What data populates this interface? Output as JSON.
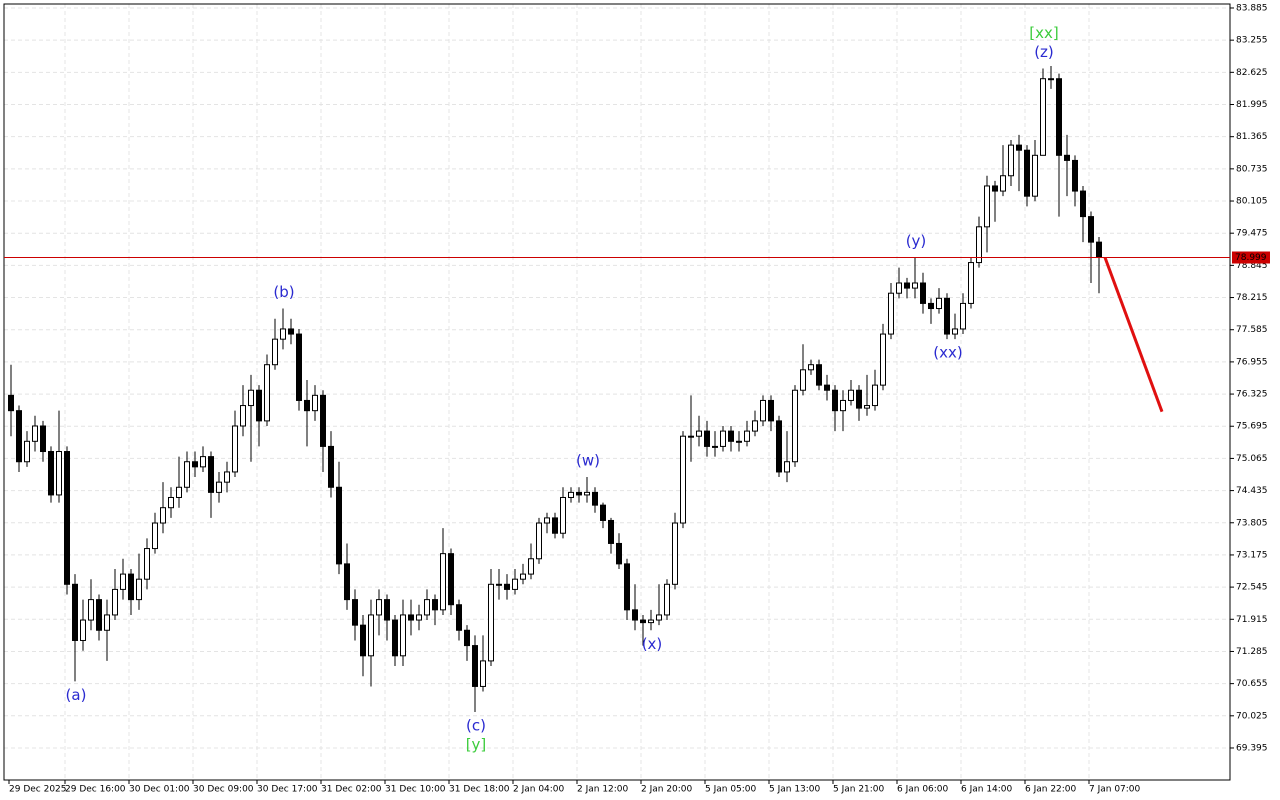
{
  "chart_data": {
    "type": "candlestick",
    "categories": [
      "29 Dec 2025",
      null,
      null,
      null,
      null,
      null,
      null,
      "29 Dec 16:00",
      null,
      null,
      null,
      null,
      null,
      null,
      null,
      "30 Dec 01:00",
      null,
      null,
      null,
      null,
      null,
      null,
      null,
      "30 Dec 09:00",
      null,
      null,
      null,
      null,
      null,
      null,
      null,
      "30 Dec 17:00",
      null,
      null,
      null,
      null,
      null,
      null,
      null,
      "31 Dec 02:00",
      null,
      null,
      null,
      null,
      null,
      null,
      null,
      "31 Dec 10:00",
      null,
      null,
      null,
      null,
      null,
      null,
      null,
      "31 Dec 18:00",
      null,
      null,
      null,
      null,
      null,
      null,
      null,
      "2 Jan 04:00",
      null,
      null,
      null,
      null,
      null,
      null,
      null,
      "2 Jan 12:00",
      null,
      null,
      null,
      null,
      null,
      null,
      null,
      "2 Jan 20:00",
      null,
      null,
      null,
      null,
      null,
      null,
      null,
      "5 Jan 05:00",
      null,
      null,
      null,
      null,
      null,
      null,
      null,
      "5 Jan 13:00",
      null,
      null,
      null,
      null,
      null,
      null,
      null,
      "5 Jan 21:00",
      null,
      null,
      null,
      null,
      null,
      null,
      null,
      "6 Jan 06:00",
      null,
      null,
      null,
      null,
      null,
      null,
      null,
      "6 Jan 14:00",
      null,
      null,
      null,
      null,
      null,
      null,
      null,
      "6 Jan 22:00",
      null,
      null,
      null,
      null,
      null,
      null,
      null,
      "7 Jan 07:00",
      null
    ],
    "open": [
      76.3,
      76.0,
      75.0,
      75.4,
      75.7,
      75.2,
      74.35,
      75.2,
      72.6,
      71.5,
      71.9,
      72.3,
      71.7,
      72.0,
      72.5,
      72.8,
      72.3,
      72.7,
      73.3,
      73.8,
      74.1,
      74.3,
      74.5,
      75.0,
      74.9,
      75.1,
      74.4,
      74.6,
      74.8,
      75.7,
      76.1,
      76.4,
      75.8,
      76.9,
      77.4,
      77.6,
      77.5,
      76.2,
      76.0,
      76.3,
      75.3,
      74.5,
      73.0,
      72.3,
      71.8,
      71.2,
      72.0,
      72.3,
      71.9,
      71.2,
      72.0,
      71.9,
      72.0,
      72.3,
      72.1,
      73.2,
      72.2,
      71.7,
      71.4,
      70.6,
      71.1,
      72.6,
      72.6,
      72.5,
      72.7,
      72.8,
      73.1,
      73.8,
      73.9,
      73.6,
      74.3,
      74.4,
      74.35,
      74.4,
      74.15,
      73.85,
      73.4,
      73.0,
      72.1,
      71.9,
      71.85,
      71.9,
      72.0,
      72.6,
      73.8,
      75.5,
      75.5,
      75.6,
      75.3,
      75.3,
      75.6,
      75.4,
      75.4,
      75.6,
      75.8,
      76.2,
      75.8,
      74.8,
      75.0,
      76.4,
      76.8,
      76.9,
      76.5,
      76.4,
      76.0,
      76.2,
      76.4,
      76.05,
      76.1,
      76.5,
      77.5,
      78.3,
      78.5,
      78.4,
      78.5,
      78.1,
      78.0,
      78.2,
      77.5,
      77.6,
      78.1,
      78.9,
      79.6,
      80.4,
      80.3,
      80.6,
      81.2,
      81.1,
      80.2,
      81.0,
      82.5,
      82.5,
      81.0,
      80.9,
      80.3,
      79.8,
      79.3
    ],
    "high": [
      76.9,
      76.1,
      75.6,
      75.9,
      75.8,
      75.3,
      76.0,
      75.3,
      72.8,
      72.3,
      72.7,
      72.4,
      72.3,
      72.9,
      73.1,
      72.9,
      73.2,
      73.5,
      74.0,
      74.6,
      74.5,
      75.1,
      75.2,
      75.2,
      75.3,
      75.2,
      74.8,
      75.0,
      76.0,
      76.5,
      76.7,
      76.5,
      77.1,
      77.8,
      78.0,
      77.8,
      77.6,
      76.6,
      76.5,
      76.4,
      75.6,
      75.0,
      73.4,
      72.5,
      72.0,
      72.3,
      72.5,
      72.4,
      72.0,
      72.3,
      72.3,
      72.2,
      72.5,
      72.4,
      73.7,
      73.3,
      72.3,
      71.8,
      71.6,
      71.6,
      72.9,
      72.9,
      72.8,
      72.9,
      73.0,
      73.4,
      73.9,
      74.0,
      74.0,
      74.5,
      74.5,
      74.5,
      74.7,
      74.5,
      74.2,
      73.9,
      73.6,
      73.1,
      72.6,
      72.0,
      72.1,
      72.6,
      72.7,
      74.0,
      75.6,
      76.3,
      75.9,
      75.8,
      75.6,
      75.7,
      75.7,
      75.6,
      75.8,
      76.0,
      76.3,
      76.3,
      75.9,
      75.6,
      76.5,
      77.3,
      77.0,
      77.0,
      76.7,
      76.5,
      76.4,
      76.6,
      76.5,
      76.7,
      76.8,
      77.7,
      78.5,
      78.8,
      78.6,
      79.0,
      78.7,
      78.2,
      78.4,
      78.3,
      77.9,
      78.3,
      79.0,
      79.8,
      80.6,
      80.5,
      81.2,
      81.3,
      81.4,
      81.2,
      81.3,
      82.7,
      82.75,
      82.6,
      81.4,
      81.0,
      80.4,
      79.9,
      79.4
    ],
    "low": [
      75.5,
      74.8,
      74.9,
      75.2,
      75.0,
      74.2,
      74.2,
      72.4,
      70.7,
      71.3,
      71.7,
      71.5,
      71.1,
      71.9,
      72.3,
      72.0,
      72.1,
      72.5,
      73.2,
      73.6,
      73.9,
      74.1,
      74.4,
      74.7,
      74.8,
      73.9,
      74.2,
      74.4,
      74.7,
      75.5,
      75.0,
      75.3,
      75.7,
      76.8,
      77.2,
      77.3,
      76.0,
      75.3,
      75.8,
      74.8,
      74.3,
      72.8,
      72.1,
      71.5,
      70.8,
      70.6,
      71.6,
      71.5,
      71.0,
      71.0,
      71.6,
      71.7,
      71.9,
      71.8,
      72.0,
      72.0,
      71.5,
      71.1,
      70.1,
      70.5,
      71.0,
      72.3,
      72.3,
      72.4,
      72.6,
      72.7,
      73.0,
      73.6,
      73.5,
      73.5,
      74.2,
      74.2,
      74.2,
      74.0,
      73.7,
      73.2,
      72.9,
      71.9,
      71.7,
      71.4,
      71.7,
      71.8,
      71.9,
      72.5,
      73.7,
      75.0,
      75.3,
      75.1,
      75.1,
      75.2,
      75.2,
      75.2,
      75.3,
      75.5,
      75.7,
      75.6,
      74.7,
      74.6,
      74.9,
      76.3,
      76.7,
      76.4,
      76.2,
      75.6,
      75.6,
      76.1,
      75.8,
      75.9,
      76.0,
      76.4,
      77.4,
      78.2,
      78.2,
      78.2,
      77.9,
      77.7,
      77.9,
      77.4,
      77.4,
      77.5,
      78.0,
      78.8,
      79.1,
      79.7,
      80.2,
      80.4,
      80.3,
      80.0,
      80.1,
      81.0,
      82.3,
      79.8,
      80.2,
      80.0,
      79.3,
      78.5,
      78.3
    ],
    "close": [
      76.0,
      75.0,
      75.4,
      75.7,
      75.2,
      74.35,
      75.2,
      72.6,
      71.5,
      71.9,
      72.3,
      71.7,
      72.0,
      72.5,
      72.8,
      72.3,
      72.7,
      73.3,
      73.8,
      74.1,
      74.3,
      74.5,
      75.0,
      74.9,
      75.1,
      74.4,
      74.6,
      74.8,
      75.7,
      76.1,
      76.4,
      75.8,
      76.9,
      77.4,
      77.6,
      77.5,
      76.2,
      76.0,
      76.3,
      75.3,
      74.5,
      73.0,
      72.3,
      71.8,
      71.2,
      72.0,
      72.3,
      71.9,
      71.2,
      72.0,
      71.9,
      72.0,
      72.3,
      72.1,
      73.2,
      72.2,
      71.7,
      71.4,
      70.6,
      71.1,
      72.6,
      72.6,
      72.5,
      72.7,
      72.8,
      73.1,
      73.8,
      73.9,
      73.6,
      74.3,
      74.4,
      74.35,
      74.4,
      74.15,
      73.85,
      73.4,
      73.0,
      72.1,
      71.9,
      71.85,
      71.9,
      72.0,
      72.6,
      73.8,
      75.5,
      75.5,
      75.6,
      75.3,
      75.3,
      75.6,
      75.4,
      75.4,
      75.6,
      75.8,
      76.2,
      75.8,
      74.8,
      75.0,
      76.4,
      76.8,
      76.9,
      76.5,
      76.4,
      76.0,
      76.2,
      76.4,
      76.05,
      76.1,
      76.5,
      77.5,
      78.3,
      78.5,
      78.4,
      78.5,
      78.1,
      78.0,
      78.2,
      77.5,
      77.6,
      78.1,
      78.9,
      79.6,
      80.4,
      80.3,
      80.6,
      81.2,
      81.1,
      80.2,
      81.0,
      82.5,
      82.5,
      81.0,
      80.9,
      80.3,
      79.8,
      79.3,
      78.999
    ],
    "ylim": [
      68.768,
      83.963
    ],
    "yticks": [
      69.395,
      70.025,
      70.655,
      71.285,
      71.915,
      72.545,
      73.175,
      73.805,
      74.435,
      75.065,
      75.695,
      76.325,
      76.955,
      77.585,
      78.215,
      78.845,
      79.475,
      80.105,
      80.735,
      81.365,
      81.995,
      82.625,
      83.255,
      83.885
    ],
    "grid": true,
    "up_color": "#ffffff",
    "down_color": "#000000",
    "outline_color": "#000000",
    "last_price": 78.999,
    "last_price_color": "#cc0000",
    "forecast": {
      "color": "#e01010",
      "values": [
        78.999,
        75.98
      ]
    },
    "annotations": [
      {
        "text": "(a)",
        "color": "#2a2ad0"
      },
      {
        "text": "(b)",
        "color": "#2a2ad0"
      },
      {
        "text": "(c)",
        "color": "#2a2ad0"
      },
      {
        "text": "[y]",
        "color": "#3ccc3c"
      },
      {
        "text": "(w)",
        "color": "#2a2ad0"
      },
      {
        "text": "(x)",
        "color": "#2a2ad0"
      },
      {
        "text": "(y)",
        "color": "#2a2ad0"
      },
      {
        "text": "(xx)",
        "color": "#2a2ad0"
      },
      {
        "text": "(z)",
        "color": "#2a2ad0"
      },
      {
        "text": "[xx]",
        "color": "#3ccc3c"
      }
    ]
  }
}
